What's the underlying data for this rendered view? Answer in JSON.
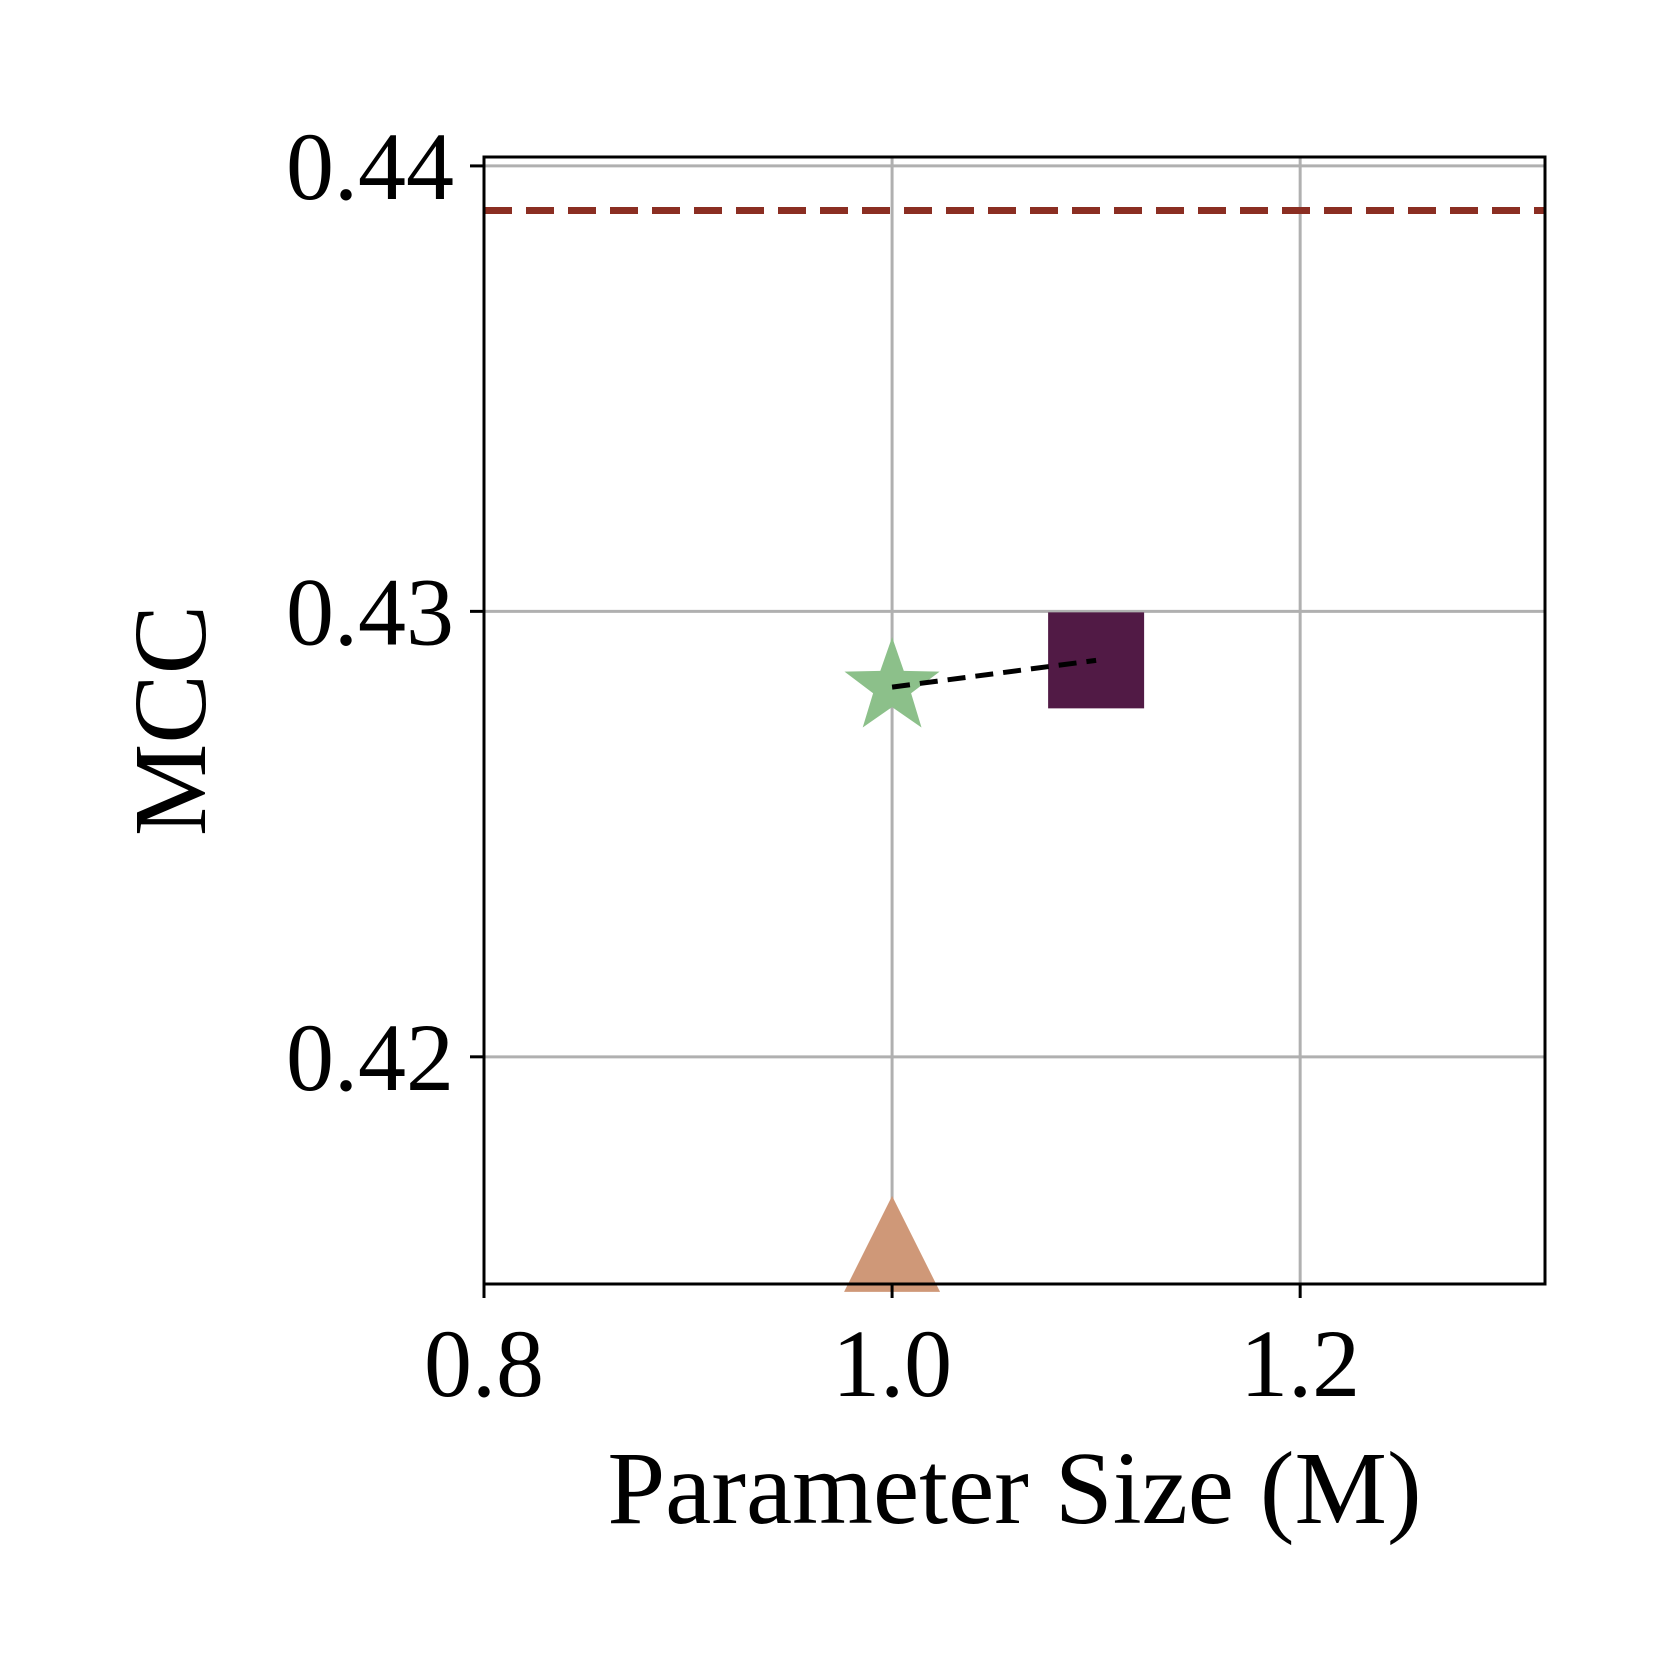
{
  "chart_data": {
    "type": "scatter",
    "title": "",
    "xlabel": "Parameter Size (M)",
    "ylabel": "MCC",
    "xlim": [
      0.8,
      1.32
    ],
    "ylim": [
      0.4149,
      0.4402
    ],
    "x_ticks": [
      0.8,
      1.0,
      1.2
    ],
    "x_tick_labels": [
      "0.8",
      "1.0",
      "1.2"
    ],
    "y_ticks": [
      0.42,
      0.43,
      0.44
    ],
    "y_tick_labels": [
      "0.42",
      "0.43",
      "0.44"
    ],
    "grid": true,
    "legend": "none",
    "points": [
      {
        "marker": "star",
        "x": 1.0,
        "y": 0.4283,
        "color": "#8cc08a"
      },
      {
        "marker": "square",
        "x": 1.1,
        "y": 0.4289,
        "color": "#511a45"
      },
      {
        "marker": "triangle",
        "x": 1.0,
        "y": 0.4158,
        "color": "#cf9878"
      }
    ],
    "connector": {
      "from": [
        1.0,
        0.4283
      ],
      "to": [
        1.1,
        0.4289
      ],
      "style": "dashed",
      "color": "#000000"
    },
    "reference_line": {
      "y": 0.439,
      "style": "dashed",
      "color": "#8b2e22"
    }
  }
}
